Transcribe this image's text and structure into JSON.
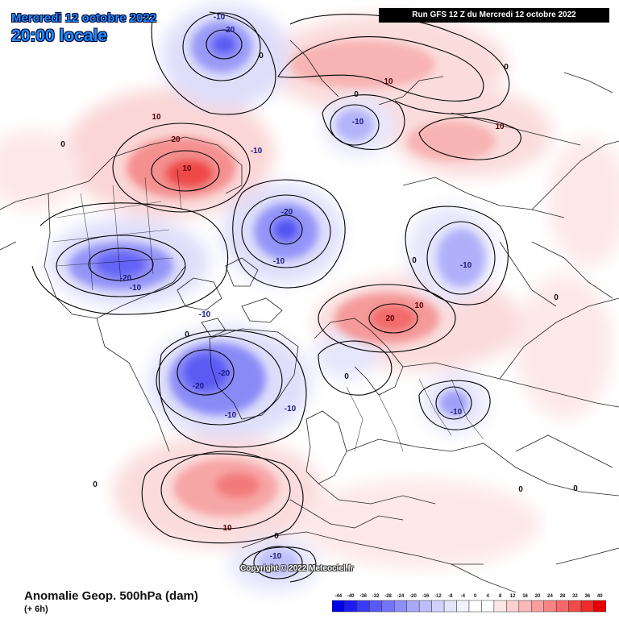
{
  "header": {
    "date": "Mercredi 12 octobre 2022",
    "time": "20:00 locale",
    "run": "Run GFS 12 Z du Mercredi 12 octobre 2022"
  },
  "footer": {
    "product": "Anomalie Geop. 500hPa (dam)",
    "step": "(+ 6h)",
    "copyright": "Copyright © 2022 Meteociel.fr"
  },
  "colorbar": {
    "ticks": [
      "-44",
      "-40",
      "-36",
      "-32",
      "-28",
      "-24",
      "-20",
      "-16",
      "-12",
      "-8",
      "-4",
      "0",
      "4",
      "8",
      "12",
      "16",
      "20",
      "24",
      "28",
      "32",
      "36",
      "40"
    ],
    "colors": [
      "#0000e6",
      "#1c1cf2",
      "#3a3af5",
      "#5858f7",
      "#7474f8",
      "#8e8ef9",
      "#a8a8fa",
      "#bebefb",
      "#d2d2fc",
      "#e4e4fd",
      "#f2f2fe",
      "#ffffff",
      "#ffffff",
      "#fde6e6",
      "#fcd0d0",
      "#fab8b8",
      "#f89e9e",
      "#f68484",
      "#f46868",
      "#f24a4a",
      "#ee2a2a",
      "#e60000"
    ]
  },
  "map_data": {
    "contour_labels": [
      {
        "text": "-10",
        "sign": "neg"
      },
      {
        "text": "-20",
        "sign": "neg"
      },
      {
        "text": "-10",
        "sign": "neg"
      },
      {
        "text": "-20",
        "sign": "neg"
      },
      {
        "text": "-10",
        "sign": "neg"
      },
      {
        "text": "-20",
        "sign": "neg"
      },
      {
        "text": "-10",
        "sign": "neg"
      },
      {
        "text": "-10",
        "sign": "neg"
      },
      {
        "text": "-10",
        "sign": "neg"
      },
      {
        "text": "-20",
        "sign": "neg"
      },
      {
        "text": "-20",
        "sign": "neg"
      },
      {
        "text": "-10",
        "sign": "neg"
      },
      {
        "text": "-10",
        "sign": "neg"
      },
      {
        "text": "-10",
        "sign": "neg"
      },
      {
        "text": "-10",
        "sign": "neg"
      },
      {
        "text": "-10",
        "sign": "neg"
      },
      {
        "text": "10",
        "sign": "pos"
      },
      {
        "text": "20",
        "sign": "pos"
      },
      {
        "text": "10",
        "sign": "pos"
      },
      {
        "text": "10",
        "sign": "pos"
      },
      {
        "text": "10",
        "sign": "pos"
      },
      {
        "text": "20",
        "sign": "pos"
      },
      {
        "text": "10",
        "sign": "pos"
      },
      {
        "text": "10",
        "sign": "pos"
      },
      {
        "text": "0",
        "sign": "zero"
      },
      {
        "text": "0",
        "sign": "zero"
      },
      {
        "text": "0",
        "sign": "zero"
      },
      {
        "text": "0",
        "sign": "zero"
      },
      {
        "text": "0",
        "sign": "zero"
      },
      {
        "text": "0",
        "sign": "zero"
      },
      {
        "text": "0",
        "sign": "zero"
      },
      {
        "text": "0",
        "sign": "zero"
      },
      {
        "text": "0",
        "sign": "zero"
      },
      {
        "text": "0",
        "sign": "zero"
      },
      {
        "text": "0",
        "sign": "zero"
      },
      {
        "text": "0",
        "sign": "zero"
      }
    ]
  }
}
